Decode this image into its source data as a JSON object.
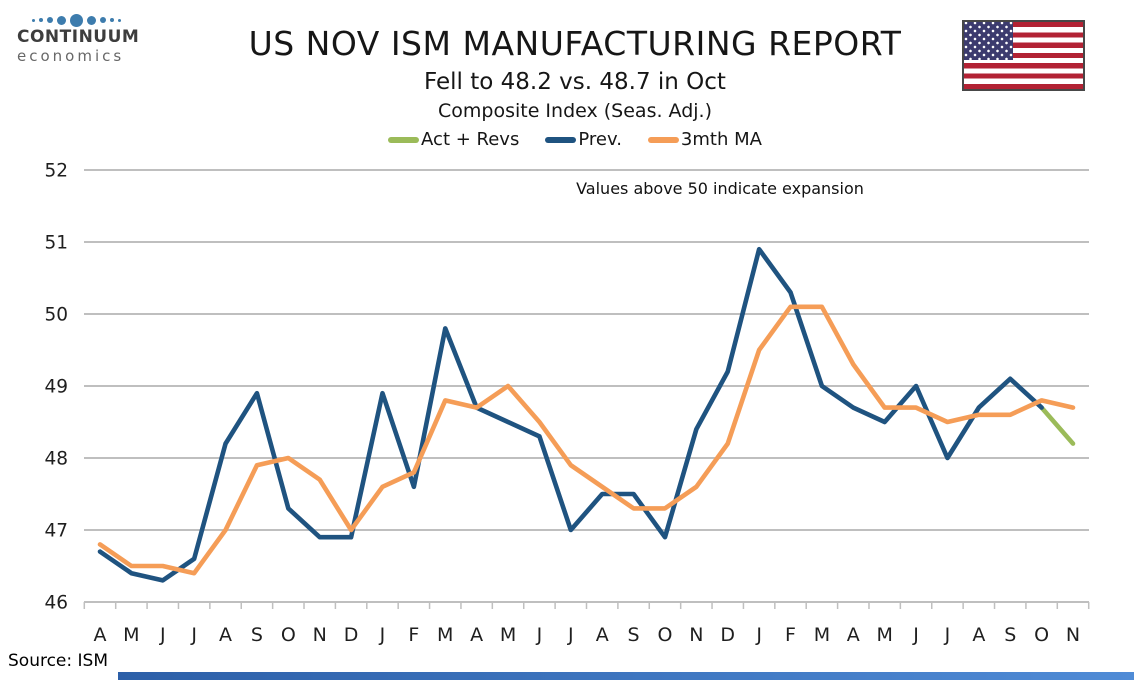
{
  "header": {
    "title": "US NOV ISM MANUFACTURING REPORT",
    "subtitle": "Fell to 48.2 vs. 48.7 in Oct",
    "index_label": "Composite Index (Seas. Adj.)"
  },
  "logo": {
    "line1": "CONTINUUM",
    "line2": "economics"
  },
  "legend": [
    {
      "label": "Act + Revs",
      "color": "#9BBB59"
    },
    {
      "label": "Prev.",
      "color": "#1F5380"
    },
    {
      "label": "3mth MA",
      "color": "#F59D57"
    }
  ],
  "source": "Source: ISM",
  "colors": {
    "grid": "#BFBFBF",
    "act_revs": "#9BBB59",
    "prev": "#1F5380",
    "ma3": "#F59D57",
    "logo_dot": "#3D7CAD",
    "flag_red": "#B22234",
    "flag_blue": "#3C3B6E",
    "footer_bar": "#2C5FA8"
  },
  "chart_data": {
    "type": "line",
    "title": "US NOV ISM MANUFACTURING REPORT",
    "subtitle": "Fell to 48.2 vs. 48.7 in Oct",
    "index_label": "Composite Index (Seas. Adj.)",
    "annotation": "Values above 50 indicate expansion",
    "x_labels": [
      "A",
      "M",
      "J",
      "J",
      "A",
      "S",
      "O",
      "N",
      "D",
      "J",
      "F",
      "M",
      "A",
      "M",
      "J",
      "J",
      "A",
      "S",
      "O",
      "N",
      "D",
      "J",
      "F",
      "M",
      "A",
      "M",
      "J",
      "J",
      "A",
      "S",
      "O",
      "N"
    ],
    "ylim": [
      46,
      52
    ],
    "yticks": [
      46,
      47,
      48,
      49,
      50,
      51,
      52
    ],
    "grid": true,
    "legend_position": "top",
    "series": [
      {
        "name": "Act + Revs",
        "color": "#9BBB59",
        "values": [
          null,
          null,
          null,
          null,
          null,
          null,
          null,
          null,
          null,
          null,
          null,
          null,
          null,
          null,
          null,
          null,
          null,
          null,
          null,
          null,
          null,
          null,
          null,
          null,
          null,
          null,
          null,
          null,
          null,
          null,
          48.7,
          48.2
        ]
      },
      {
        "name": "Prev.",
        "color": "#1F5380",
        "values": [
          46.7,
          46.4,
          46.3,
          46.6,
          48.2,
          48.9,
          47.3,
          46.9,
          46.9,
          48.9,
          47.6,
          49.8,
          48.7,
          48.5,
          48.3,
          47.0,
          47.5,
          47.5,
          46.9,
          48.4,
          49.2,
          50.9,
          50.3,
          49.0,
          48.7,
          48.5,
          49.0,
          48.0,
          48.7,
          49.1,
          48.7,
          null
        ]
      },
      {
        "name": "3mth MA",
        "color": "#F59D57",
        "values": [
          46.8,
          46.5,
          46.5,
          46.4,
          47.0,
          47.9,
          48.0,
          47.7,
          47.0,
          47.6,
          47.8,
          48.8,
          48.7,
          49.0,
          48.5,
          47.9,
          47.6,
          47.3,
          47.3,
          47.6,
          48.2,
          49.5,
          50.1,
          50.1,
          49.3,
          48.7,
          48.7,
          48.5,
          48.6,
          48.6,
          48.8,
          48.7
        ]
      }
    ]
  }
}
